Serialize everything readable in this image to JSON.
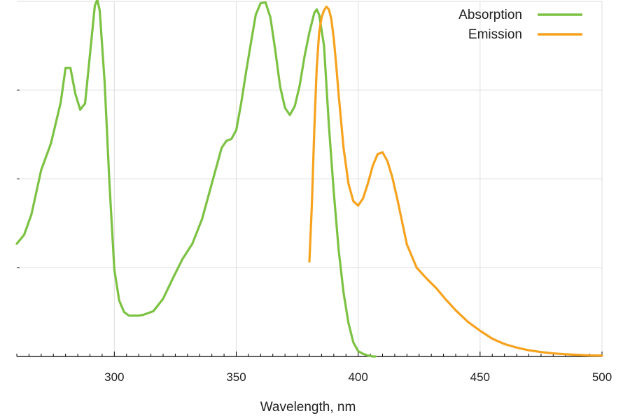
{
  "chart_data": {
    "type": "line",
    "title": "",
    "xlabel": "Wavelength, nm",
    "ylabel": "",
    "xlim": [
      260,
      500
    ],
    "ylim": [
      0,
      4
    ],
    "x_ticks": [
      300,
      350,
      400,
      450,
      500
    ],
    "x_minor_step": 5,
    "y_ticks": [
      0,
      1,
      2,
      3,
      4
    ],
    "grid": true,
    "legend": "top-right",
    "series": [
      {
        "name": "Absorption",
        "color": "#7cc242",
        "x": [
          260,
          263,
          266,
          270,
          274,
          278,
          280,
          282,
          284,
          286,
          288,
          290,
          292,
          293,
          294,
          296,
          298,
          300,
          302,
          304,
          306,
          308,
          310,
          312,
          316,
          320,
          324,
          328,
          332,
          336,
          340,
          344,
          346,
          348,
          350,
          352,
          354,
          356,
          358,
          360,
          362,
          364,
          366,
          368,
          370,
          372,
          374,
          376,
          378,
          380,
          382,
          383,
          384,
          386,
          388,
          390,
          392,
          394,
          396,
          398,
          400,
          402,
          404,
          406,
          407
        ],
        "y": [
          1.27,
          1.37,
          1.6,
          2.1,
          2.4,
          2.86,
          3.25,
          3.25,
          2.96,
          2.78,
          2.85,
          3.4,
          3.95,
          4.02,
          3.9,
          3.1,
          1.95,
          0.98,
          0.63,
          0.5,
          0.46,
          0.46,
          0.46,
          0.47,
          0.51,
          0.65,
          0.88,
          1.1,
          1.27,
          1.55,
          1.95,
          2.35,
          2.43,
          2.45,
          2.55,
          2.85,
          3.2,
          3.53,
          3.85,
          3.98,
          3.99,
          3.82,
          3.45,
          3.04,
          2.8,
          2.72,
          2.82,
          3.05,
          3.38,
          3.65,
          3.87,
          3.91,
          3.85,
          3.5,
          2.6,
          1.85,
          1.2,
          0.72,
          0.38,
          0.16,
          0.06,
          0.03,
          0.01,
          0.0,
          0.0
        ]
      },
      {
        "name": "Emission",
        "color": "#f6a21d",
        "x": [
          380,
          381,
          382,
          383,
          384,
          385,
          386,
          387,
          388,
          389,
          390,
          391,
          392,
          394,
          396,
          398,
          400,
          402,
          404,
          406,
          408,
          410,
          412,
          414,
          416,
          418,
          420,
          424,
          428,
          432,
          436,
          440,
          445,
          450,
          455,
          460,
          465,
          470,
          475,
          480,
          485,
          490,
          495,
          500
        ],
        "y": [
          1.07,
          1.7,
          2.55,
          3.25,
          3.65,
          3.82,
          3.9,
          3.94,
          3.91,
          3.8,
          3.58,
          3.28,
          2.95,
          2.35,
          1.95,
          1.75,
          1.7,
          1.78,
          1.95,
          2.15,
          2.28,
          2.3,
          2.2,
          2.02,
          1.78,
          1.52,
          1.26,
          1.0,
          0.88,
          0.77,
          0.64,
          0.52,
          0.39,
          0.29,
          0.2,
          0.14,
          0.1,
          0.07,
          0.05,
          0.035,
          0.025,
          0.018,
          0.012,
          0.01
        ]
      }
    ]
  }
}
